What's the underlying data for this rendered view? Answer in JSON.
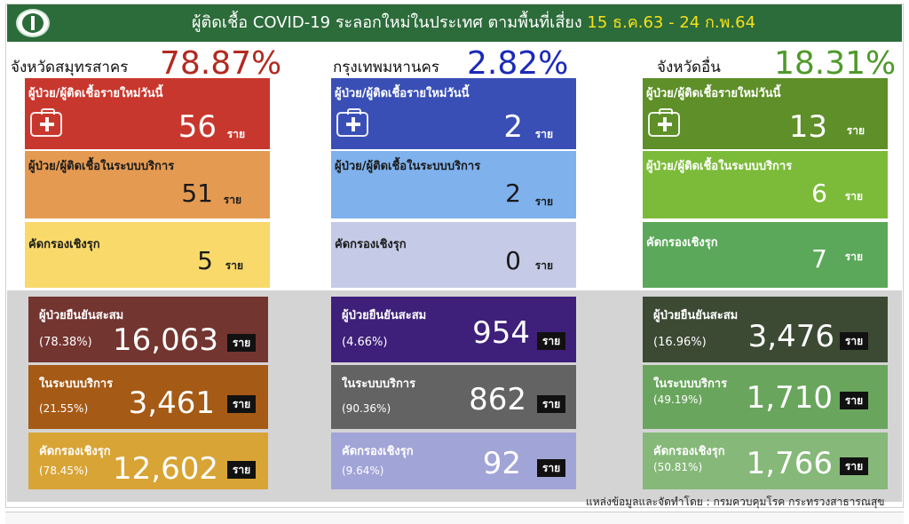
{
  "header": {
    "title_main": "ผู้ติดเชื้อ COVID-19 ระลอกใหม่ในประเทศ ตามพื้นที่เสี่ยง",
    "title_dates": "15 ธ.ค.63 - 24 ก.พ.64"
  },
  "colors": {
    "header_bg": "#2c6b3a",
    "samut_pct": "#b22a20",
    "bkk_pct": "#1a2ab8",
    "other_pct": "#4e9a2a"
  },
  "regions": [
    {
      "name": "จังหวัดสมุทรสาคร",
      "percent": "78.87%",
      "cards": [
        {
          "label": "ผู้ป่วย/ผู้ติดเชื้อรายใหม่วันนี้",
          "value": "56",
          "unit": "ราย",
          "icon": "first-aid-kit-icon"
        },
        {
          "label": "ผู้ป่วย/ผู้ติดเชื้อในระบบบริการ",
          "value": "51",
          "unit": "ราย"
        },
        {
          "label": "คัดกรองเชิงรุก",
          "value": "5",
          "unit": "ราย"
        }
      ],
      "summary": [
        {
          "label": "ผู้ป่วยยืนยันสะสม",
          "percent": "(78.38%)",
          "value": "16,063",
          "unit": "ราย"
        },
        {
          "label": "ในระบบบริการ",
          "percent": "(21.55%)",
          "value": "3,461",
          "unit": "ราย"
        },
        {
          "label": "คัดกรองเชิงรุก",
          "percent": "(78.45%)",
          "value": "12,602",
          "unit": "ราย"
        }
      ]
    },
    {
      "name": "กรุงเทพมหานคร",
      "percent": "2.82%",
      "cards": [
        {
          "label": "ผู้ป่วย/ผู้ติดเชื้อรายใหม่วันนี้",
          "value": "2",
          "unit": "ราย",
          "icon": "first-aid-kit-icon"
        },
        {
          "label": "ผู้ป่วย/ผู้ติดเชื้อในระบบบริการ",
          "value": "2",
          "unit": "ราย"
        },
        {
          "label": "คัดกรองเชิงรุก",
          "value": "0",
          "unit": "ราย"
        }
      ],
      "summary": [
        {
          "label": "ผู้ป่วยยืนยันสะสม",
          "percent": "(4.66%)",
          "value": "954",
          "unit": "ราย"
        },
        {
          "label": "ในระบบบริการ",
          "percent": "(90.36%)",
          "value": "862",
          "unit": "ราย"
        },
        {
          "label": "คัดกรองเชิงรุก",
          "percent": "(9.64%)",
          "value": "92",
          "unit": "ราย"
        }
      ]
    },
    {
      "name": "จังหวัดอื่น",
      "percent": "18.31%",
      "cards": [
        {
          "label": "ผู้ป่วย/ผู้ติดเชื้อรายใหม่วันนี้",
          "value": "13",
          "unit": "ราย",
          "icon": "first-aid-kit-icon"
        },
        {
          "label": "ผู้ป่วย/ผู้ติดเชื้อในระบบบริการ",
          "value": "6",
          "unit": "ราย"
        },
        {
          "label": "คัดกรองเชิงรุก",
          "value": "7",
          "unit": "ราย"
        }
      ],
      "summary": [
        {
          "label": "ผู้ป่วยยืนยันสะสม",
          "percent": "(16.96%)",
          "value": "3,476",
          "unit": "ราย"
        },
        {
          "label": "ในระบบบริการ",
          "percent": "(49.19%)",
          "value": "1,710",
          "unit": "ราย"
        },
        {
          "label": "คัดกรองเชิงรุก",
          "percent": "(50.81%)",
          "value": "1,766",
          "unit": "ราย"
        }
      ]
    }
  ],
  "source": "แหล่งข้อมูลและจัดทำโดย : กรมควบคุมโรค กระทรวงสาธารณสุข"
}
